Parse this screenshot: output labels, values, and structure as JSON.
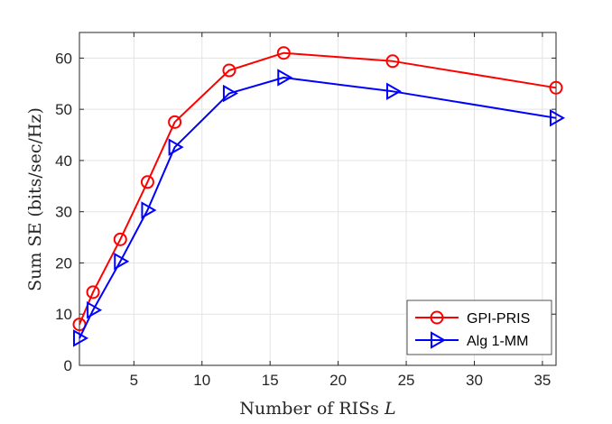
{
  "chart_data": {
    "type": "line",
    "xlabel": "Number of RISs",
    "xlabel_var": "L",
    "ylabel": "Sum SE (bits/sec/Hz)",
    "xlim": [
      1,
      36
    ],
    "ylim": [
      0,
      65
    ],
    "xticks": [
      "5",
      "10",
      "15",
      "20",
      "25",
      "30",
      "35"
    ],
    "yticks": [
      "0",
      "10",
      "20",
      "30",
      "40",
      "50",
      "60"
    ],
    "grid": true,
    "legend_position": "bottom-right",
    "series": [
      {
        "name": "GPI-PRIS",
        "color": "#ff0000",
        "marker": "circle",
        "x": [
          1,
          2,
          4,
          6,
          8,
          12,
          16,
          24,
          36
        ],
        "y": [
          8.0,
          14.3,
          24.6,
          35.8,
          47.5,
          57.6,
          61.0,
          59.4,
          54.2
        ]
      },
      {
        "name": "Alg 1-MM",
        "color": "#0000ff",
        "marker": "triangle-right",
        "x": [
          1,
          2,
          4,
          6,
          8,
          12,
          16,
          24,
          36
        ],
        "y": [
          5.3,
          10.8,
          20.3,
          30.3,
          42.6,
          53.1,
          56.2,
          53.5,
          48.3
        ]
      }
    ]
  }
}
